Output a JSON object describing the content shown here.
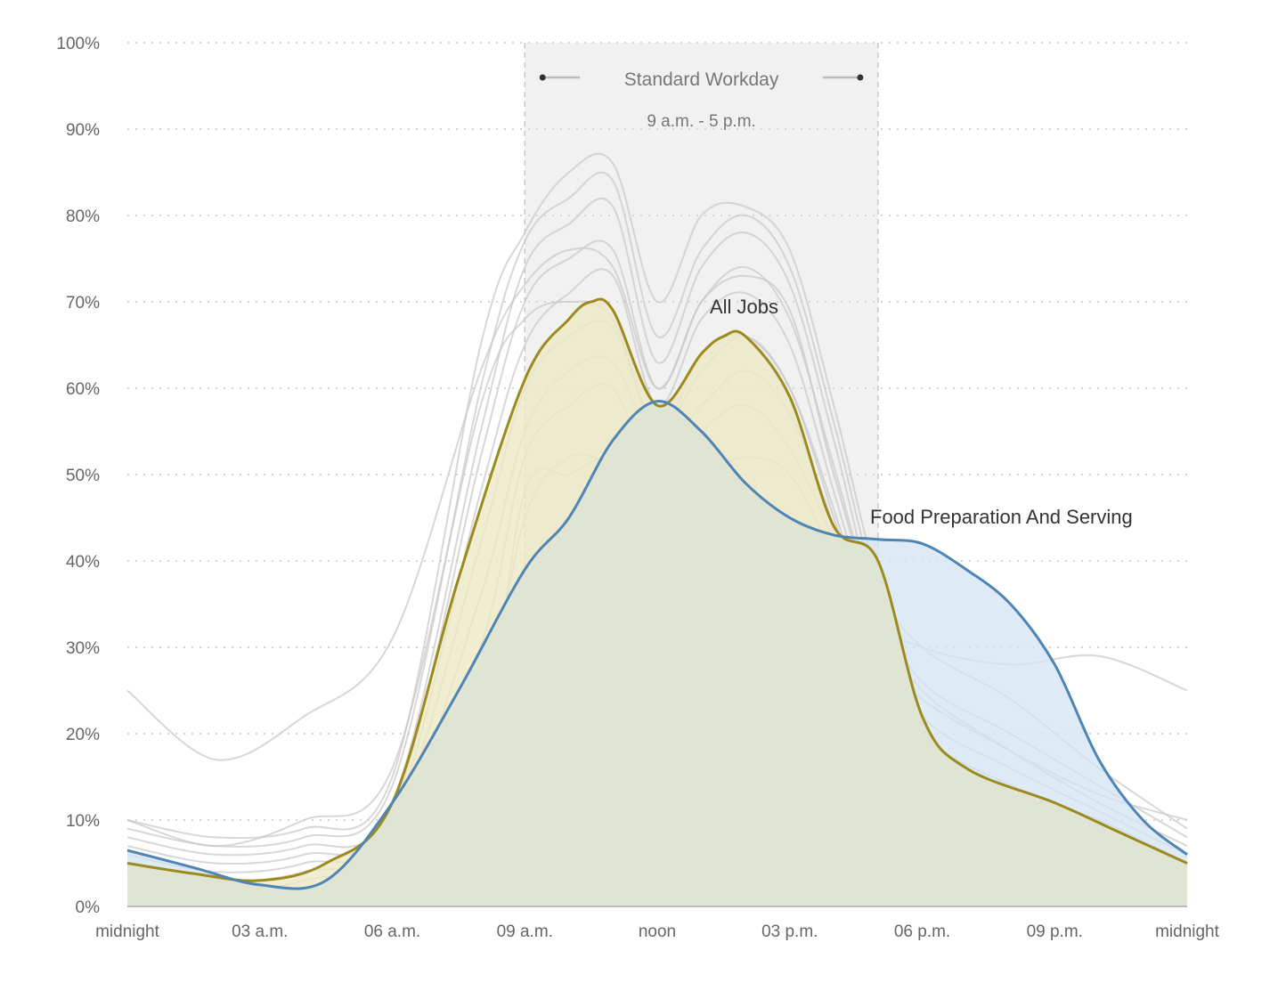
{
  "chart_data": {
    "type": "area",
    "title": "",
    "xlabel": "",
    "ylabel": "",
    "ylim": [
      0,
      100
    ],
    "y_ticks": [
      "0%",
      "10%",
      "20%",
      "30%",
      "40%",
      "50%",
      "60%",
      "70%",
      "80%",
      "90%",
      "100%"
    ],
    "x_ticks": [
      "midnight",
      "03 a.m.",
      "06 a.m.",
      "09 a.m.",
      "noon",
      "03 p.m.",
      "06 p.m.",
      "09 p.m.",
      "midnight"
    ],
    "x_unit": "hour of day",
    "xlim": [
      0,
      24
    ],
    "grid": "horizontal dotted",
    "highlight_band": {
      "label": "Standard Workday",
      "sublabel": "9 a.m. - 5 p.m.",
      "start_hour": 9,
      "end_hour": 17
    },
    "series": [
      {
        "name": "All Jobs",
        "color": "#9c8a1f",
        "fill": "#eee8c6",
        "x": [
          0,
          1.5,
          3,
          4.5,
          6,
          7.5,
          9,
          10,
          10.5,
          11,
          12,
          13,
          13.5,
          14,
          15,
          16,
          17,
          18,
          19,
          21,
          22.5,
          24
        ],
        "values": [
          5,
          3.8,
          3,
          5,
          12,
          38,
          61,
          68,
          70,
          69,
          58,
          64,
          66,
          66,
          59,
          44,
          40,
          22,
          16,
          12,
          8.5,
          5
        ]
      },
      {
        "name": "Food Preparation And Serving",
        "color": "#4f85b5",
        "fill": "#d3e4f3",
        "x": [
          0,
          1.5,
          3,
          4.5,
          6,
          7.5,
          9,
          10,
          11,
          12,
          13,
          14,
          15,
          16,
          17,
          18,
          19,
          20,
          21,
          22,
          23,
          24
        ],
        "values": [
          6.5,
          4.5,
          2.5,
          3,
          12,
          25,
          39,
          45,
          54,
          58.5,
          55,
          49,
          45,
          43,
          42.5,
          42,
          39,
          35,
          28,
          17,
          10,
          6
        ]
      }
    ],
    "background_series": [
      {
        "x": [
          0,
          2,
          4,
          6,
          8,
          9,
          10,
          11,
          12,
          13,
          14,
          15,
          16,
          17,
          18,
          20,
          22,
          24
        ],
        "values": [
          10,
          8,
          9,
          15,
          65,
          78,
          85,
          86,
          70,
          80,
          81,
          76,
          58,
          38,
          30,
          24,
          16,
          9
        ]
      },
      {
        "x": [
          0,
          2,
          4,
          6,
          8,
          9,
          10,
          11,
          12,
          13,
          14,
          15,
          16,
          17,
          18,
          20,
          22,
          24
        ],
        "values": [
          9,
          7,
          8,
          14,
          60,
          77,
          82,
          84,
          66,
          76,
          80,
          74,
          56,
          36,
          26,
          20,
          14,
          8
        ]
      },
      {
        "x": [
          0,
          2,
          4,
          6,
          8,
          9,
          10,
          11,
          12,
          13,
          14,
          15,
          16,
          17,
          18,
          20,
          22,
          24
        ],
        "values": [
          8,
          6,
          7,
          12,
          55,
          74,
          79,
          81,
          63,
          74,
          78,
          72,
          54,
          34,
          25,
          18,
          12,
          7
        ]
      },
      {
        "x": [
          0,
          2,
          4,
          6,
          8,
          9,
          10,
          11,
          12,
          13,
          14,
          15,
          16,
          17,
          18,
          20,
          22,
          24
        ],
        "values": [
          7,
          5,
          6,
          11,
          52,
          70,
          75,
          76,
          60,
          70,
          74,
          68,
          51,
          33,
          22,
          16,
          11,
          6
        ]
      },
      {
        "x": [
          0,
          2,
          4,
          6,
          8,
          9,
          10,
          11,
          12,
          13,
          14,
          15,
          16,
          17,
          18,
          20,
          22,
          24
        ],
        "values": [
          6,
          4,
          5,
          10,
          48,
          65,
          71,
          73,
          58,
          68,
          71,
          65,
          48,
          31,
          20,
          14,
          10,
          5
        ]
      },
      {
        "x": [
          0,
          2,
          4,
          6,
          8,
          9,
          10,
          11,
          12,
          13,
          14,
          15,
          16,
          17,
          18,
          20,
          22,
          24
        ],
        "values": [
          5,
          3,
          4,
          9,
          42,
          60,
          66,
          67,
          55,
          62,
          66,
          60,
          45,
          29,
          18,
          12,
          8,
          4
        ]
      },
      {
        "x": [
          0,
          2,
          4,
          6,
          8,
          9,
          10,
          11,
          12,
          13,
          14,
          15,
          16,
          17,
          18,
          20,
          22,
          24
        ],
        "values": [
          4,
          2,
          3,
          8,
          36,
          55,
          62,
          63,
          53,
          58,
          62,
          57,
          44,
          28,
          16,
          10,
          7,
          3
        ]
      },
      {
        "x": [
          0,
          2,
          4,
          6,
          8,
          9,
          10,
          11,
          12,
          13,
          14,
          15,
          16,
          17,
          18,
          20,
          22,
          24
        ],
        "values": [
          2,
          1,
          1,
          4,
          22,
          45,
          52,
          51,
          48,
          50,
          52,
          50,
          40,
          25,
          12,
          8,
          4,
          2
        ]
      },
      {
        "x": [
          0,
          2,
          4,
          6,
          8,
          9,
          10,
          11,
          12,
          13,
          14,
          15,
          16,
          17,
          18,
          20,
          22,
          24
        ],
        "values": [
          1,
          1,
          1,
          3,
          20,
          48,
          50,
          52,
          47,
          45,
          46,
          44,
          38,
          22,
          10,
          6,
          3,
          1
        ]
      },
      {
        "x": [
          0,
          2,
          4,
          6,
          8,
          9,
          10,
          11,
          12,
          13,
          14,
          15,
          16,
          17,
          18,
          20,
          22,
          24
        ],
        "values": [
          25,
          17,
          22,
          31,
          62,
          72,
          76,
          74,
          60,
          70,
          73,
          69,
          50,
          34,
          30,
          28,
          29,
          25
        ]
      },
      {
        "x": [
          0,
          2,
          4,
          6,
          8,
          9,
          10,
          11,
          12,
          13,
          14,
          15,
          16,
          17,
          18,
          20,
          22,
          24
        ],
        "values": [
          10,
          7,
          10,
          16,
          58,
          68,
          70,
          68,
          55,
          64,
          66,
          60,
          46,
          30,
          24,
          18,
          13,
          10
        ]
      },
      {
        "x": [
          0,
          2,
          4,
          6,
          8,
          9,
          10,
          11,
          12,
          13,
          14,
          15,
          16,
          17,
          18,
          20,
          22,
          24
        ],
        "values": [
          3,
          2,
          2,
          6,
          30,
          52,
          58,
          60,
          49,
          55,
          58,
          53,
          42,
          26,
          14,
          9,
          5,
          3
        ]
      }
    ]
  }
}
